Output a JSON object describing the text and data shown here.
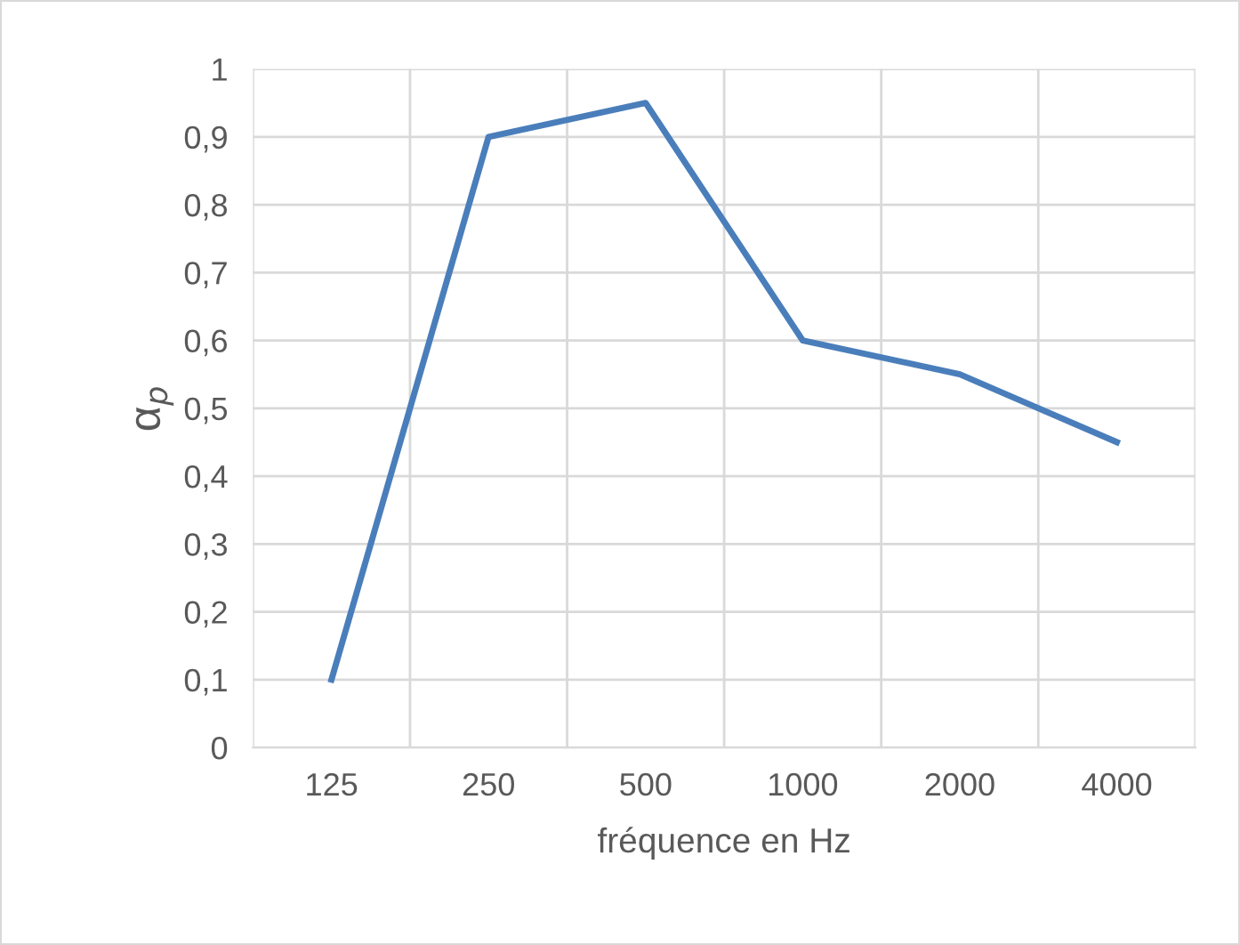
{
  "chart_data": {
    "type": "line",
    "xlabel": "fréquence en Hz",
    "ylabel": "α$_{p}$",
    "categories": [
      "125",
      "250",
      "500",
      "1000",
      "2000",
      "4000"
    ],
    "series": [
      {
        "color": "#4a7ebb",
        "values": [
          0.1,
          0.9,
          0.95,
          0.6,
          0.55,
          0.45
        ]
      }
    ],
    "ylim": [
      0,
      1
    ],
    "yticks": [
      {
        "value": 0,
        "label": "0"
      },
      {
        "value": 0.1,
        "label": "0,1"
      },
      {
        "value": 0.2,
        "label": "0,2"
      },
      {
        "value": 0.3,
        "label": "0,3"
      },
      {
        "value": 0.4,
        "label": "0,4"
      },
      {
        "value": 0.5,
        "label": "0,5"
      },
      {
        "value": 0.6,
        "label": "0,6"
      },
      {
        "value": 0.7,
        "label": "0,7"
      },
      {
        "value": 0.8,
        "label": "0,8"
      },
      {
        "value": 0.9,
        "label": "0,9"
      },
      {
        "value": 1,
        "label": "1"
      }
    ],
    "grid": true,
    "marker": "none",
    "line_style": "solid"
  }
}
